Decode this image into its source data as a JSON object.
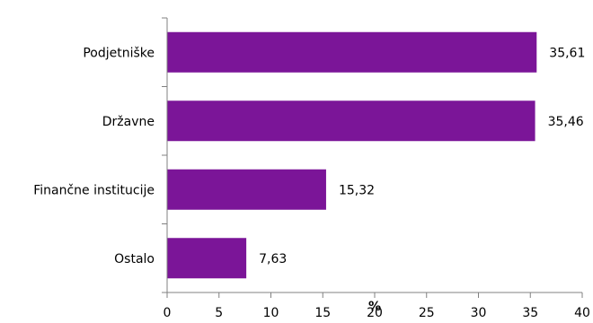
{
  "chart_data": {
    "type": "bar",
    "orientation": "horizontal",
    "categories": [
      "Podjetniške",
      "Državne",
      "Finančne institucije",
      "Ostalo"
    ],
    "values": [
      35.61,
      35.46,
      15.32,
      7.63
    ],
    "value_labels": [
      "35,61",
      "35,46",
      "15,32",
      "7,63"
    ],
    "xlim": [
      0,
      40
    ],
    "x_ticks": [
      0,
      5,
      10,
      15,
      20,
      25,
      30,
      35,
      40
    ],
    "x_tick_labels": [
      "0",
      "5",
      "10",
      "15",
      "20",
      "25",
      "30",
      "35",
      "40"
    ],
    "xlabel": "%",
    "title": "",
    "grid": false,
    "legend": "none",
    "bar_color": "#7B1598"
  }
}
